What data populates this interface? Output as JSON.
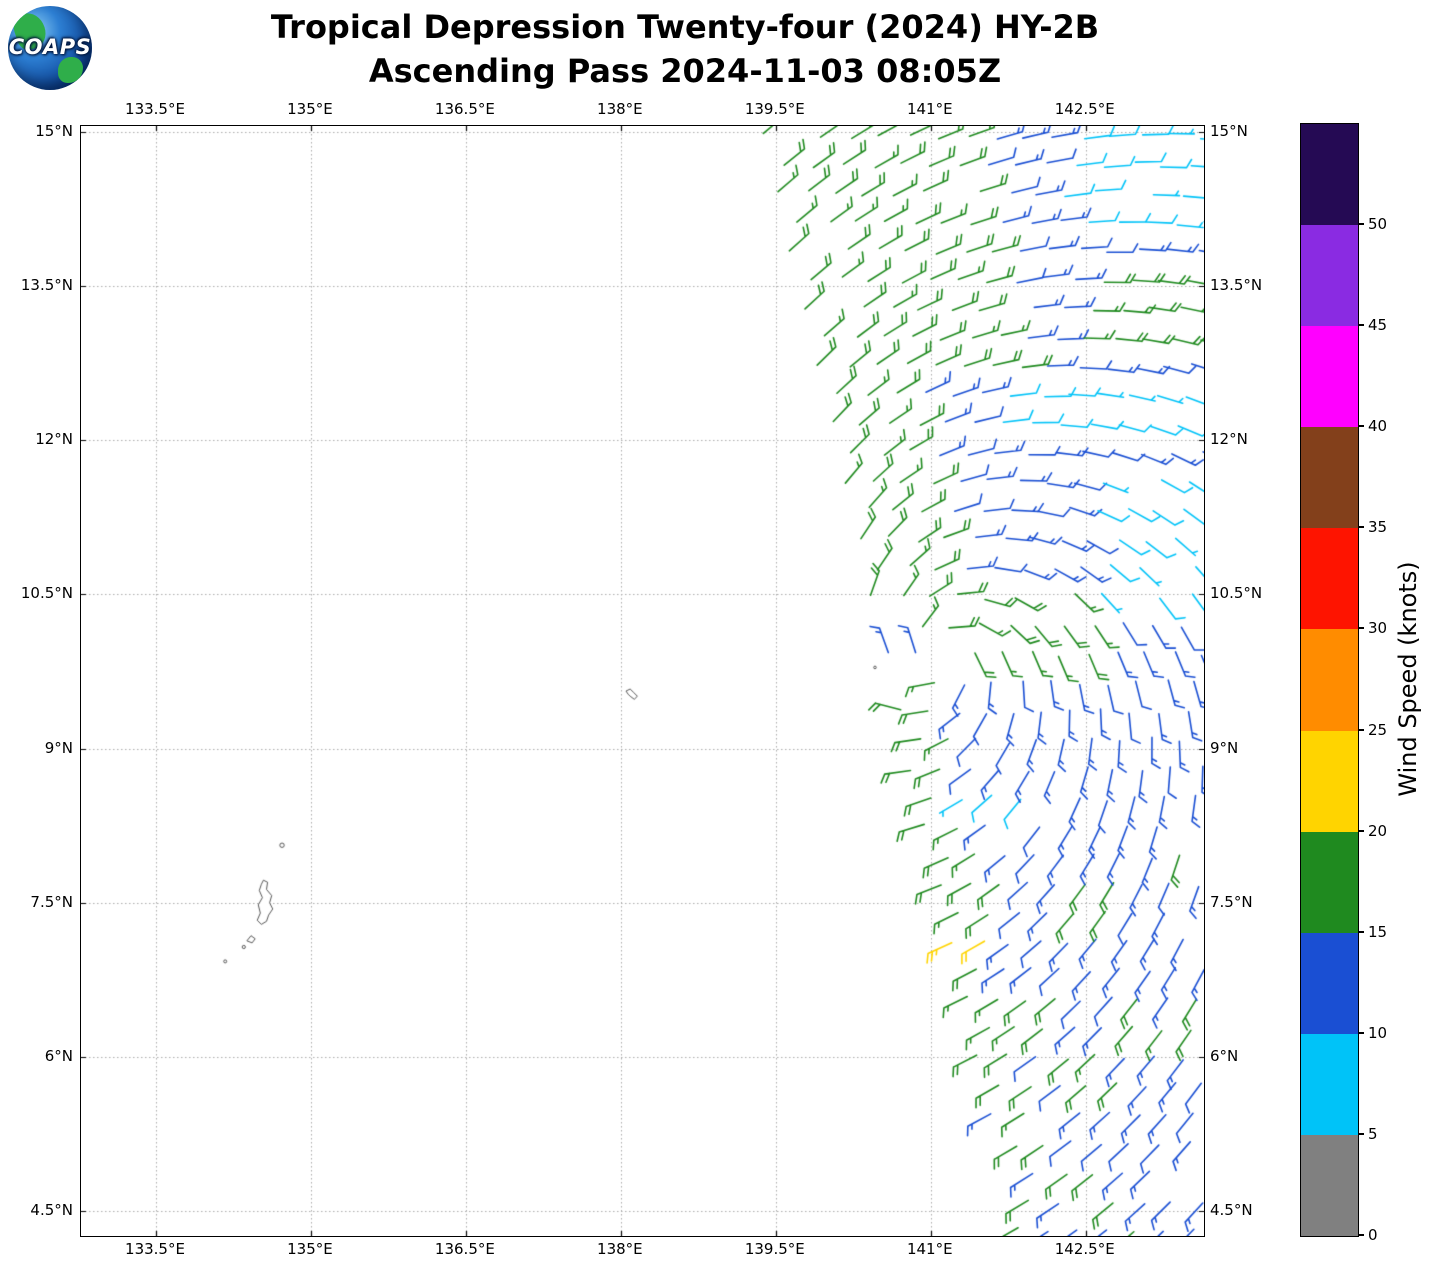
{
  "header": {
    "title_line1": "Tropical Depression Twenty-four (2024) HY-2B",
    "title_line2": "Ascending Pass 2024-11-03 08:05Z",
    "logo_text": "COAPS"
  },
  "axes": {
    "lon_range": [
      132.774,
      143.645
    ],
    "lat_range": [
      4.258,
      15.058
    ],
    "lon_ticks": [
      {
        "label": "133.5°E",
        "lon": 133.5
      },
      {
        "label": "135°E",
        "lon": 135.0
      },
      {
        "label": "136.5°E",
        "lon": 136.5
      },
      {
        "label": "138°E",
        "lon": 138.0
      },
      {
        "label": "139.5°E",
        "lon": 139.5
      },
      {
        "label": "141°E",
        "lon": 141.0
      },
      {
        "label": "142.5°E",
        "lon": 142.5
      }
    ],
    "lat_ticks": [
      {
        "label": "15°N",
        "lat": 15.0
      },
      {
        "label": "13.5°N",
        "lat": 13.5
      },
      {
        "label": "12°N",
        "lat": 12.0
      },
      {
        "label": "10.5°N",
        "lat": 10.5
      },
      {
        "label": "9°N",
        "lat": 9.0
      },
      {
        "label": "7.5°N",
        "lat": 7.5
      },
      {
        "label": "6°N",
        "lat": 6.0
      },
      {
        "label": "4.5°N",
        "lat": 4.5
      }
    ]
  },
  "colorbar": {
    "label": "Wind Speed (knots)",
    "unit": "knots",
    "ticks": [
      0,
      5,
      10,
      15,
      20,
      25,
      30,
      35,
      40,
      45,
      50
    ],
    "max": 55,
    "colors": [
      {
        "range": [
          0,
          5
        ],
        "hex": "#808080"
      },
      {
        "range": [
          5,
          10
        ],
        "hex": "#00C3F8"
      },
      {
        "range": [
          10,
          15
        ],
        "hex": "#1A4FD3"
      },
      {
        "range": [
          15,
          20
        ],
        "hex": "#1F8A1F"
      },
      {
        "range": [
          20,
          25
        ],
        "hex": "#FFD400"
      },
      {
        "range": [
          25,
          30
        ],
        "hex": "#FF8C00"
      },
      {
        "range": [
          30,
          35
        ],
        "hex": "#FE1400"
      },
      {
        "range": [
          35,
          40
        ],
        "hex": "#83401B"
      },
      {
        "range": [
          40,
          45
        ],
        "hex": "#FF00FF"
      },
      {
        "range": [
          45,
          50
        ],
        "hex": "#8A2BE2"
      },
      {
        "range": [
          50,
          55
        ],
        "hex": "#250A54"
      }
    ]
  },
  "chart_data": {
    "type": "wind-barb-map",
    "storm": "Tropical Depression Twenty-four (2024)",
    "satellite": "HY-2B",
    "pass_type": "Ascending",
    "datetime_utc": "2024-11-03 08:05Z",
    "speed_unit": "knots",
    "barb_grid_deg": 0.28,
    "vortex_center": {
      "lon": 141.1,
      "lat": 9.9
    },
    "inflow_deg": 22,
    "default_speed": 13,
    "swath": {
      "left_lon_at_4_5N": 141.82,
      "slope_per_deg_lat": -0.232,
      "right_lon": 143.66
    },
    "speed_regions": [
      {
        "name": "gold-patch-7N",
        "lat": [
          7.05,
          7.35
        ],
        "lon": [
          141.0,
          141.5
        ],
        "speed": 23
      },
      {
        "name": "cyan-top-right",
        "lat": [
          13.9,
          15.2
        ],
        "lon": [
          142.25,
          143.7
        ],
        "speed": 8
      },
      {
        "name": "cyan-band-12N",
        "lat": [
          12.15,
          12.62
        ],
        "lon": [
          141.65,
          143.7
        ],
        "speed": 8
      },
      {
        "name": "cyan-mid-right",
        "lat": [
          10.35,
          11.65
        ],
        "lon": [
          142.55,
          143.7
        ],
        "speed": 8
      },
      {
        "name": "cyan-8.5N",
        "lat": [
          8.3,
          8.72
        ],
        "lon": [
          141.15,
          141.95
        ],
        "speed": 8
      },
      {
        "name": "green-nw-band",
        "lat": [
          12.62,
          15.2
        ],
        "rel": [
          0,
          2.0
        ],
        "speed": 18
      },
      {
        "name": "green-right-13N",
        "lat": [
          12.95,
          13.6
        ],
        "lon": [
          142.5,
          143.7
        ],
        "speed": 18
      },
      {
        "name": "green-west-strip",
        "lat": [
          10.3,
          12.62
        ],
        "rel": [
          0,
          0.85
        ],
        "speed": 18
      },
      {
        "name": "green-arc-10N",
        "lat": [
          9.85,
          10.6
        ],
        "lon": [
          140.9,
          142.6
        ],
        "speed": 18
      },
      {
        "name": "green-west-strip-s",
        "lat": [
          8.0,
          9.85
        ],
        "rel": [
          0,
          0.5
        ],
        "speed": 18
      },
      {
        "name": "south-mixed",
        "lat": [
          4.0,
          8.0
        ],
        "lon": [
          139.0,
          143.7
        ],
        "mix": true,
        "green_speed": 18,
        "blue_speed": 13
      }
    ],
    "islands": [
      {
        "name": "palau-babeldaob",
        "points": [
          [
            134.54,
            7.72
          ],
          [
            134.58,
            7.7
          ],
          [
            134.57,
            7.63
          ],
          [
            134.62,
            7.57
          ],
          [
            134.6,
            7.5
          ],
          [
            134.63,
            7.44
          ],
          [
            134.59,
            7.38
          ],
          [
            134.57,
            7.32
          ],
          [
            134.52,
            7.29
          ],
          [
            134.48,
            7.33
          ],
          [
            134.51,
            7.4
          ],
          [
            134.49,
            7.48
          ],
          [
            134.53,
            7.55
          ],
          [
            134.5,
            7.62
          ],
          [
            134.52,
            7.68
          ],
          [
            134.54,
            7.72
          ]
        ]
      },
      {
        "name": "palau-islet-ring",
        "dot": [
          134.72,
          8.06
        ],
        "r": 2.2
      },
      {
        "name": "palau-koror",
        "points": [
          [
            134.42,
            7.18
          ],
          [
            134.46,
            7.15
          ],
          [
            134.43,
            7.11
          ],
          [
            134.38,
            7.13
          ],
          [
            134.42,
            7.18
          ]
        ]
      },
      {
        "name": "palau-islet-1",
        "dot": [
          134.35,
          7.07
        ],
        "r": 1.6
      },
      {
        "name": "palau-islet-2",
        "dot": [
          134.17,
          6.93
        ],
        "r": 1.5
      },
      {
        "name": "yap",
        "points": [
          [
            138.05,
            9.56
          ],
          [
            138.09,
            9.58
          ],
          [
            138.12,
            9.55
          ],
          [
            138.16,
            9.51
          ],
          [
            138.13,
            9.48
          ],
          [
            138.09,
            9.51
          ],
          [
            138.07,
            9.53
          ],
          [
            138.05,
            9.56
          ]
        ]
      },
      {
        "name": "ngulu-islet",
        "dot": [
          140.46,
          9.79
        ],
        "r": 1.3
      }
    ]
  }
}
